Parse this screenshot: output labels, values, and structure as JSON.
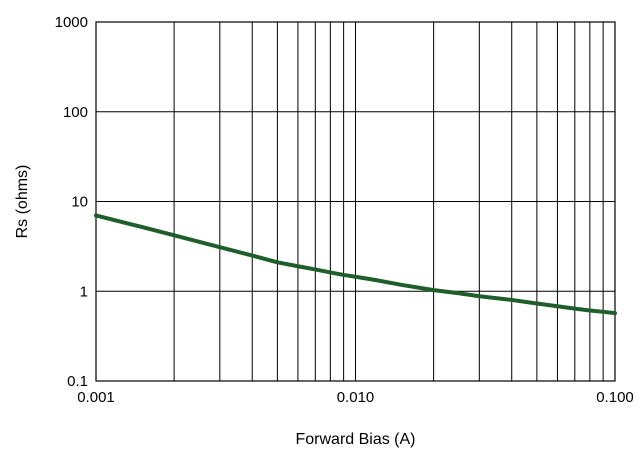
{
  "chart_data": {
    "type": "line",
    "xlabel": "Forward Bias (A)",
    "ylabel": "Rs (ohms)",
    "x_scale": "log",
    "y_scale": "log",
    "xlim": [
      0.001,
      0.1
    ],
    "ylim": [
      0.1,
      1000
    ],
    "x_tick_labels": [
      "0.001",
      "0.010",
      "0.100"
    ],
    "y_tick_labels": [
      "0.1",
      "1",
      "10",
      "100",
      "1000"
    ],
    "grid": true,
    "series": [
      {
        "color": "#1e5e2a",
        "x": [
          0.001,
          0.0015,
          0.002,
          0.003,
          0.004,
          0.005,
          0.006,
          0.007,
          0.008,
          0.009,
          0.01,
          0.012,
          0.015,
          0.02,
          0.025,
          0.03,
          0.04,
          0.05,
          0.06,
          0.07,
          0.08,
          0.09,
          0.1
        ],
        "y": [
          7.0,
          5.2,
          4.2,
          3.1,
          2.5,
          2.1,
          1.9,
          1.75,
          1.62,
          1.52,
          1.45,
          1.33,
          1.18,
          1.03,
          0.95,
          0.88,
          0.8,
          0.73,
          0.68,
          0.64,
          0.61,
          0.59,
          0.57
        ]
      }
    ]
  }
}
